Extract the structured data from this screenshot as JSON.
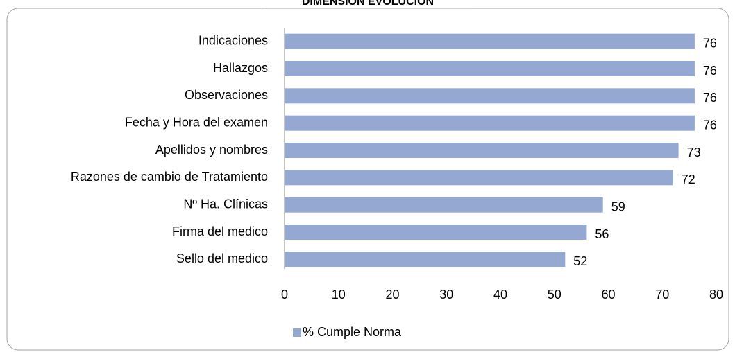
{
  "chart_data": {
    "type": "bar",
    "orientation": "horizontal",
    "title": "DIMENSIÓN EVOLUCIÓN",
    "categories": [
      "Indicaciones",
      "Hallazgos",
      "Observaciones",
      "Fecha y Hora del examen",
      "Apellidos y nombres",
      "Razones de cambio de Tratamiento",
      "Nº Ha. Clínicas",
      "Firma del medico",
      "Sello del medico"
    ],
    "series": [
      {
        "name": "% Cumple Norma",
        "color": "#95a8d2",
        "values": [
          76,
          76,
          76,
          76,
          73,
          72,
          59,
          56,
          52
        ]
      }
    ],
    "xlim": [
      0,
      80
    ],
    "xticks": [
      0,
      10,
      20,
      30,
      40,
      50,
      60,
      70,
      80
    ],
    "grid": false,
    "legend": "bottom"
  }
}
